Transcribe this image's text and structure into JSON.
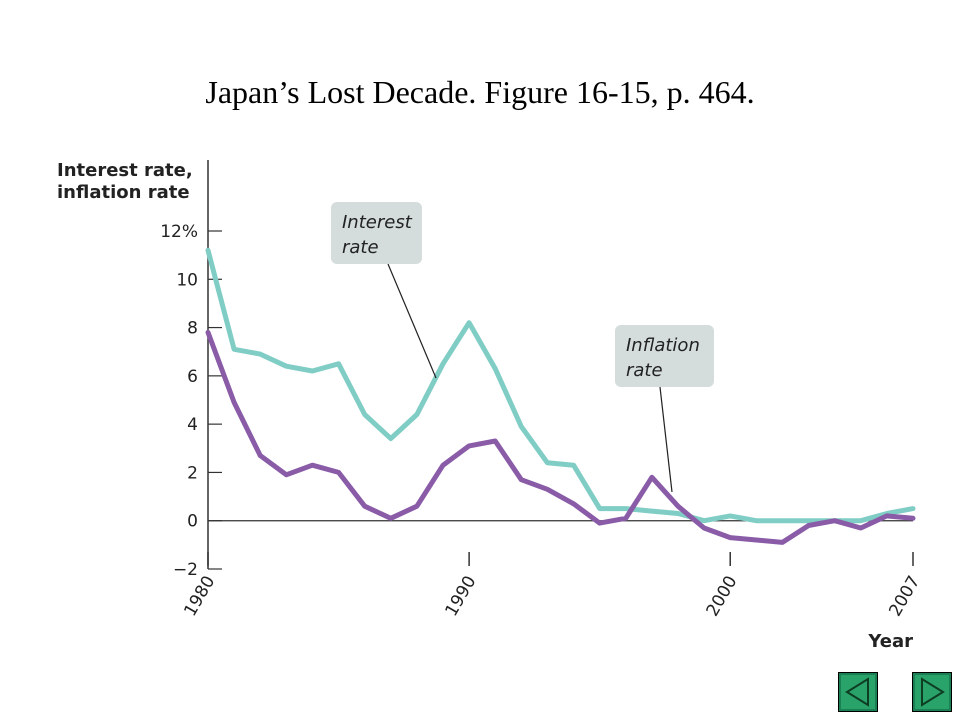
{
  "slide": {
    "title": "Japan’s Lost Decade. Figure 16-15, p. 464."
  },
  "chart_data": {
    "type": "line",
    "title": "",
    "ylabel_lines": [
      "Interest rate,",
      "inflation rate"
    ],
    "xlabel": "Year",
    "xlim": [
      1980,
      2007
    ],
    "ylim": [
      -2,
      12
    ],
    "yticks": [
      -2,
      0,
      2,
      4,
      6,
      8,
      10,
      12
    ],
    "ytick_labels": [
      "−2",
      "0",
      "2",
      "4",
      "6",
      "8",
      "10",
      "12%"
    ],
    "xticks": [
      1980,
      1990,
      2000,
      2007
    ],
    "xtick_labels": [
      "1980",
      "1990",
      "2000",
      "2007"
    ],
    "grid": false,
    "zero_line": true,
    "series": [
      {
        "name": "Interest rate",
        "label_lines": [
          "Interest",
          "rate"
        ],
        "color": "#7fcdc4",
        "x": [
          1980,
          1981,
          1982,
          1983,
          1984,
          1985,
          1986,
          1987,
          1988,
          1989,
          1990,
          1991,
          1992,
          1993,
          1994,
          1995,
          1996,
          1997,
          1998,
          1999,
          2000,
          2001,
          2002,
          2003,
          2004,
          2005,
          2006,
          2007
        ],
        "values": [
          11.2,
          7.1,
          6.9,
          6.4,
          6.2,
          6.5,
          4.4,
          3.4,
          4.4,
          6.5,
          8.2,
          6.3,
          3.9,
          2.4,
          2.3,
          0.5,
          0.5,
          0.4,
          0.3,
          0.0,
          0.2,
          0.0,
          0.0,
          0.0,
          0.0,
          0.0,
          0.3,
          0.5
        ]
      },
      {
        "name": "Inflation rate",
        "label_lines": [
          "Inflation",
          "rate"
        ],
        "color": "#8a5ca8",
        "x": [
          1980,
          1981,
          1982,
          1983,
          1984,
          1985,
          1986,
          1987,
          1988,
          1989,
          1990,
          1991,
          1992,
          1993,
          1994,
          1995,
          1996,
          1997,
          1998,
          1999,
          2000,
          2001,
          2002,
          2003,
          2004,
          2005,
          2006,
          2007
        ],
        "values": [
          7.8,
          4.9,
          2.7,
          1.9,
          2.3,
          2.0,
          0.6,
          0.1,
          0.6,
          2.3,
          3.1,
          3.3,
          1.7,
          1.3,
          0.7,
          -0.1,
          0.1,
          1.8,
          0.6,
          -0.3,
          -0.7,
          -0.8,
          -0.9,
          -0.2,
          0.0,
          -0.3,
          0.2,
          0.1
        ]
      }
    ]
  },
  "navigation": {
    "prev_icon": "triangle-left-icon",
    "next_icon": "triangle-right-icon",
    "button_fill": "#2aa36b"
  }
}
